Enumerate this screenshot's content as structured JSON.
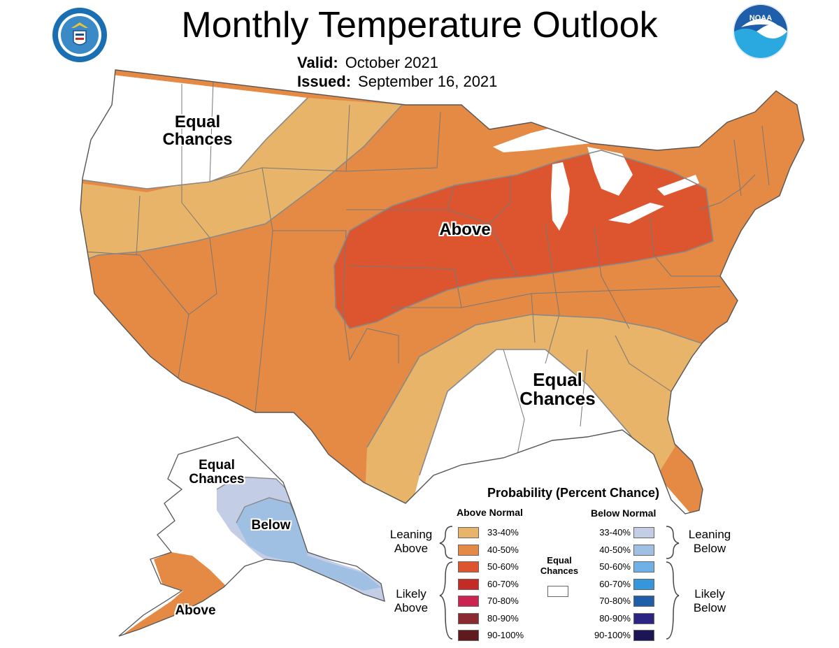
{
  "title": "Monthly Temperature Outlook",
  "valid": {
    "label": "Valid:",
    "value": "October 2021"
  },
  "issued": {
    "label": "Issued:",
    "value": "September 16, 2021"
  },
  "colors": {
    "above_33_40": "#e8b469",
    "above_40_50": "#e48a44",
    "above_50_60": "#dc552e",
    "above_60_70": "#c42b25",
    "above_70_80": "#cc2450",
    "above_80_90": "#8a2a30",
    "above_90_100": "#5e1a1c",
    "below_33_40": "#c3cde6",
    "below_40_50": "#9fbfe3",
    "below_50_60": "#6fb0e6",
    "below_60_70": "#3596dc",
    "below_70_80": "#1f5ea8",
    "below_80_90": "#2b2480",
    "below_90_100": "#1d1655",
    "equal_chances": "#ffffff",
    "boundary": "#777777"
  },
  "map": {
    "labels": {
      "conus_nw_ec": "Equal\nChances",
      "conus_above": "Above",
      "conus_se_ec": "Equal\nChances",
      "alaska_ec": "Equal\nChances",
      "alaska_below": "Below",
      "alaska_above": "Above"
    }
  },
  "legend": {
    "title": "Probability (Percent Chance)",
    "above_header": "Above Normal",
    "below_header": "Below Normal",
    "leaning_above": "Leaning\nAbove",
    "likely_above": "Likely\nAbove",
    "leaning_below": "Leaning\nBelow",
    "likely_below": "Likely\nBelow",
    "equal_chances": "Equal\nChances",
    "above_ranges": [
      "33-40%",
      "40-50%",
      "50-60%",
      "60-70%",
      "70-80%",
      "80-90%",
      "90-100%"
    ],
    "below_ranges": [
      "33-40%",
      "40-50%",
      "50-60%",
      "60-70%",
      "70-80%",
      "80-90%",
      "90-100%"
    ]
  },
  "logos": {
    "left": "department-of-commerce-seal",
    "right": "noaa-logo"
  }
}
